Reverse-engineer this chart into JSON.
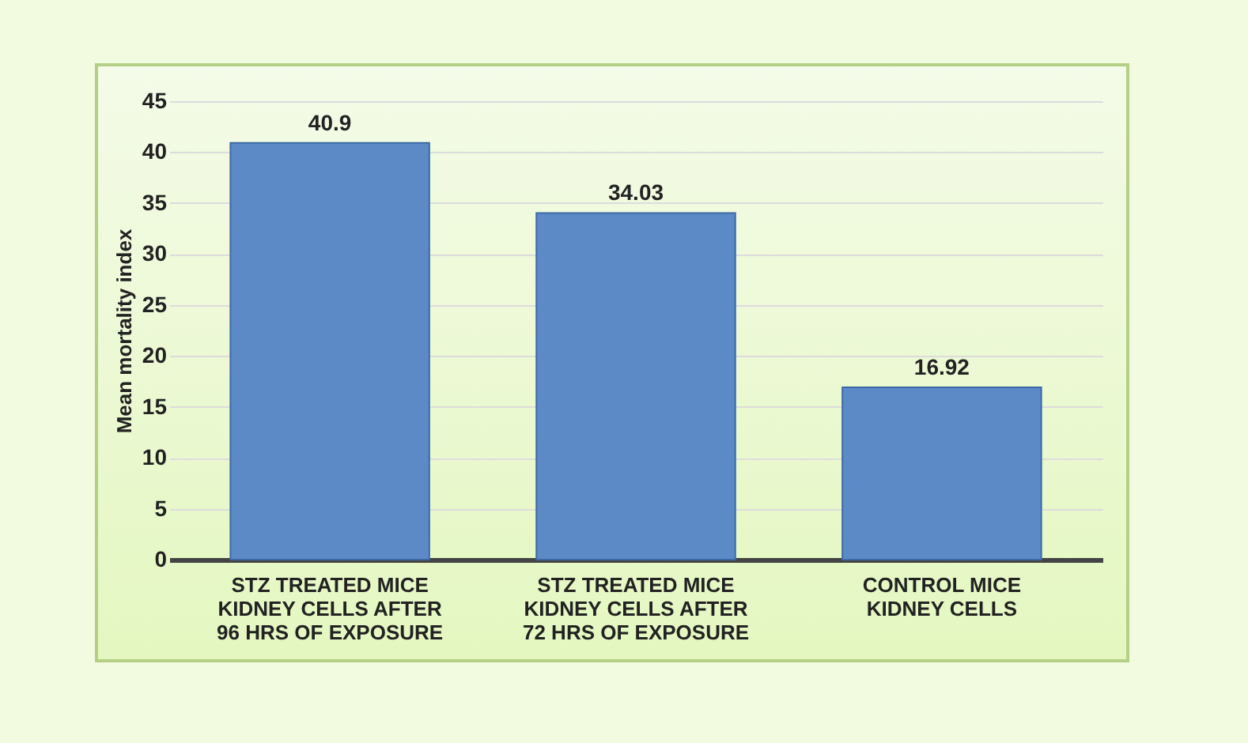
{
  "chart_data": {
    "type": "bar",
    "ylabel": "Mean mortality index",
    "categories": [
      "STZ TREATED MICE\nKIDNEY CELLS AFTER\n96 HRS OF EXPOSURE",
      "STZ TREATED MICE\nKIDNEY CELLS AFTER\n72 HRS OF EXPOSURE",
      "CONTROL MICE\nKIDNEY CELLS"
    ],
    "values": [
      40.9,
      34.03,
      16.92
    ],
    "color": "#5b8ac6",
    "ylim": [
      0,
      45
    ],
    "yticks": [
      0,
      5,
      10,
      15,
      20,
      25,
      30,
      35,
      40,
      45
    ],
    "grid": "y",
    "data_labels": true
  }
}
